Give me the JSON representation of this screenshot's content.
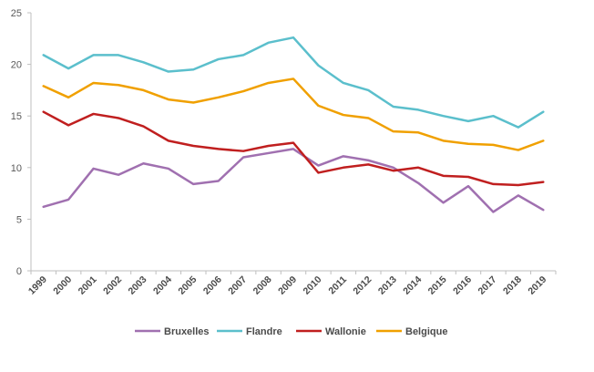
{
  "chart_data": {
    "type": "line",
    "title": "",
    "xlabel": "",
    "ylabel": "",
    "ylim": [
      0,
      25
    ],
    "yticks": [
      0,
      5,
      10,
      15,
      20,
      25
    ],
    "grid": false,
    "legend_position": "bottom",
    "x": [
      "1999",
      "2000",
      "2001",
      "2002",
      "2003",
      "2004",
      "2005",
      "2006",
      "2007",
      "2008",
      "2009",
      "2010",
      "2011",
      "2012",
      "2013",
      "2014",
      "2015",
      "2016",
      "2017",
      "2018",
      "2019"
    ],
    "series": [
      {
        "name": "Bruxelles",
        "color": "#a070b0",
        "values": [
          6.2,
          6.9,
          9.9,
          9.3,
          10.4,
          9.9,
          8.4,
          8.7,
          11.0,
          11.4,
          11.8,
          10.2,
          11.1,
          10.7,
          10.0,
          8.5,
          6.6,
          8.2,
          5.7,
          7.3,
          5.9
        ]
      },
      {
        "name": "Flandre",
        "color": "#5bbfcc",
        "values": [
          20.9,
          19.6,
          20.9,
          20.9,
          20.2,
          19.3,
          19.5,
          20.5,
          20.9,
          22.1,
          22.6,
          19.9,
          18.2,
          17.5,
          15.9,
          15.6,
          15.0,
          14.5,
          15.0,
          13.9,
          15.4
        ]
      },
      {
        "name": "Wallonie",
        "color": "#c01f1f",
        "values": [
          15.4,
          14.1,
          15.2,
          14.8,
          14.0,
          12.6,
          12.1,
          11.8,
          11.6,
          12.1,
          12.4,
          9.5,
          10.0,
          10.3,
          9.7,
          10.0,
          9.2,
          9.1,
          8.4,
          8.3,
          8.6
        ]
      },
      {
        "name": "Belgique",
        "color": "#f0a000",
        "values": [
          17.9,
          16.8,
          18.2,
          18.0,
          17.5,
          16.6,
          16.3,
          16.8,
          17.4,
          18.2,
          18.6,
          16.0,
          15.1,
          14.8,
          13.5,
          13.4,
          12.6,
          12.3,
          12.2,
          11.7,
          12.6
        ]
      }
    ]
  }
}
